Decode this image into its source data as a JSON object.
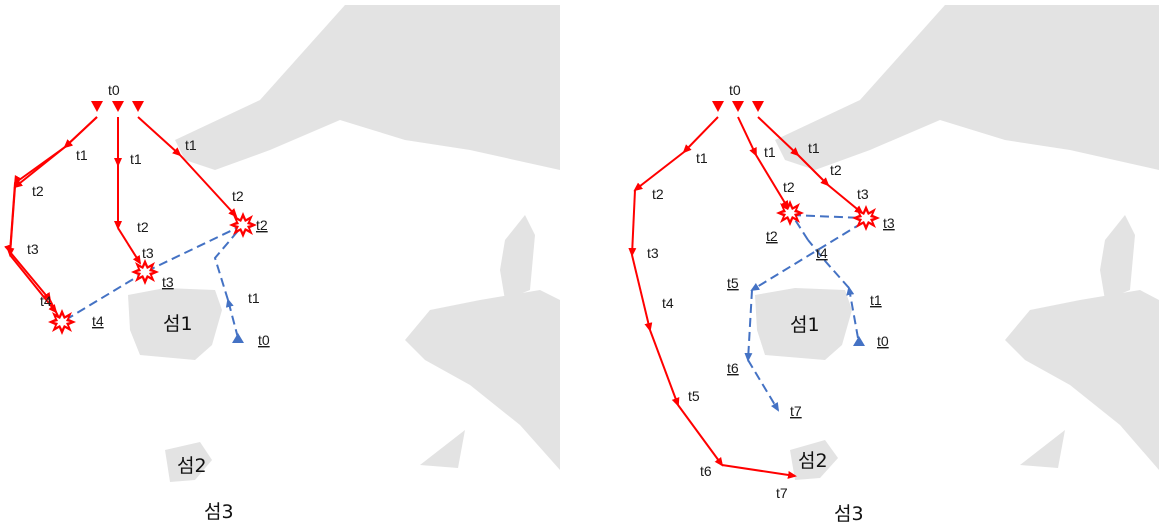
{
  "colors": {
    "attacker": "#ff0000",
    "defender": "#4472c4",
    "land": "#e3e3e3"
  },
  "left_panel": {
    "red_start_label": "t0",
    "red_labels": [
      "t1",
      "t2",
      "t3",
      "t4",
      "t1",
      "t2",
      "t3",
      "t1",
      "t2"
    ],
    "blue_labels": [
      "t0",
      "t1",
      "t2",
      "t3",
      "t4"
    ],
    "islands": [
      "섬1",
      "섬2",
      "섬3"
    ]
  },
  "right_panel": {
    "red_start_label": "t0",
    "red_labels": [
      "t1",
      "t2",
      "t3",
      "t4",
      "t5",
      "t6",
      "t7",
      "t1",
      "t2",
      "t1",
      "t2",
      "t3"
    ],
    "blue_labels": [
      "t0",
      "t1",
      "t2",
      "t3",
      "t4",
      "t5",
      "t6",
      "t7"
    ],
    "islands": [
      "섬1",
      "섬2",
      "섬3"
    ]
  }
}
